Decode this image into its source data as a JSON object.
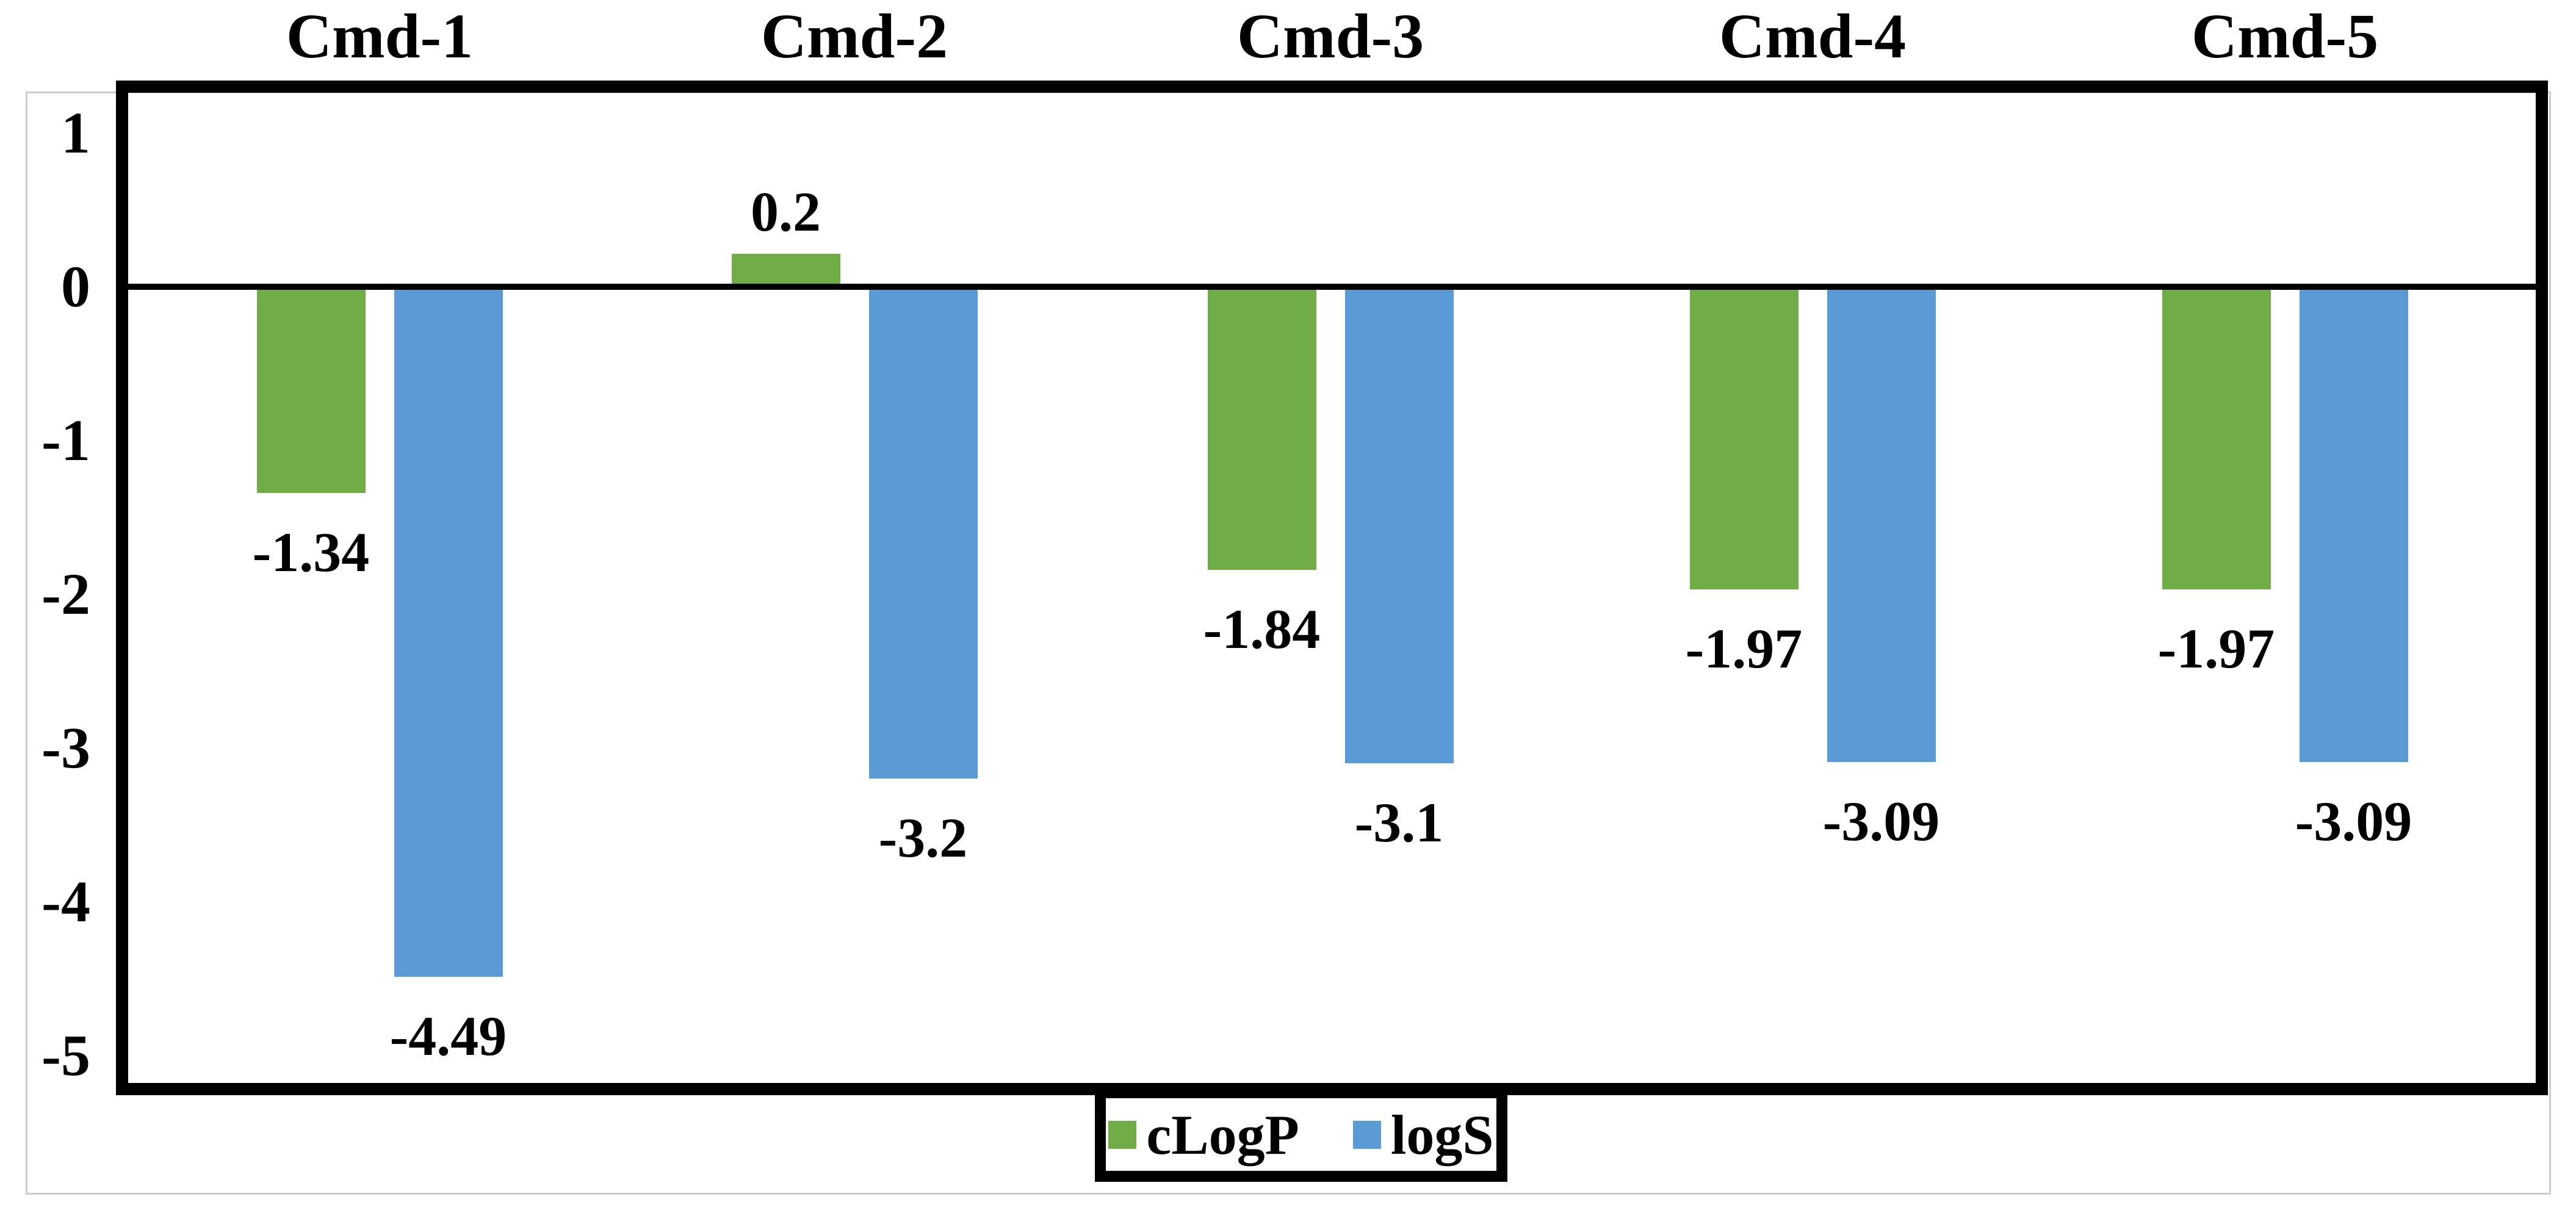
{
  "chart_data": {
    "type": "bar",
    "title": "",
    "xlabel": "",
    "ylabel": "",
    "grid": false,
    "categories": [
      "Cmd-1",
      "Cmd-2",
      "Cmd-3",
      "Cmd-4",
      "Cmd-5"
    ],
    "series": [
      {
        "name": "cLogP",
        "color": "#70AD47",
        "values": [
          -1.34,
          0.2,
          -1.84,
          -1.97,
          -1.97
        ],
        "value_labels": [
          "-1.34",
          "0.2",
          "-1.84",
          "-1.97",
          "-1.97"
        ]
      },
      {
        "name": "logS",
        "color": "#5B9BD5",
        "values": [
          -4.49,
          -3.2,
          -3.1,
          -3.09,
          -3.09
        ],
        "value_labels": [
          "-4.49",
          "-3.2",
          "-3.1",
          "-3.09",
          "-3.09"
        ]
      }
    ],
    "y_axis": {
      "tick_labels": [
        "1",
        "0",
        "-1",
        "-2",
        "-3",
        "-4",
        "-5"
      ],
      "tick_values": [
        1,
        0,
        -1,
        -2,
        -3,
        -4,
        -5
      ],
      "range": [
        -5.3,
        1.35
      ]
    },
    "legend": {
      "position": "bottom",
      "entries": [
        {
          "label": "cLogP",
          "color": "#70AD47"
        },
        {
          "label": "logS",
          "color": "#5B9BD5"
        }
      ]
    }
  },
  "colors": {
    "bar_green": "#70AD47",
    "bar_blue": "#5B9BD5",
    "frame": "#000000",
    "outer_border": "#cccccc",
    "background": "#ffffff",
    "text": "#000000"
  }
}
